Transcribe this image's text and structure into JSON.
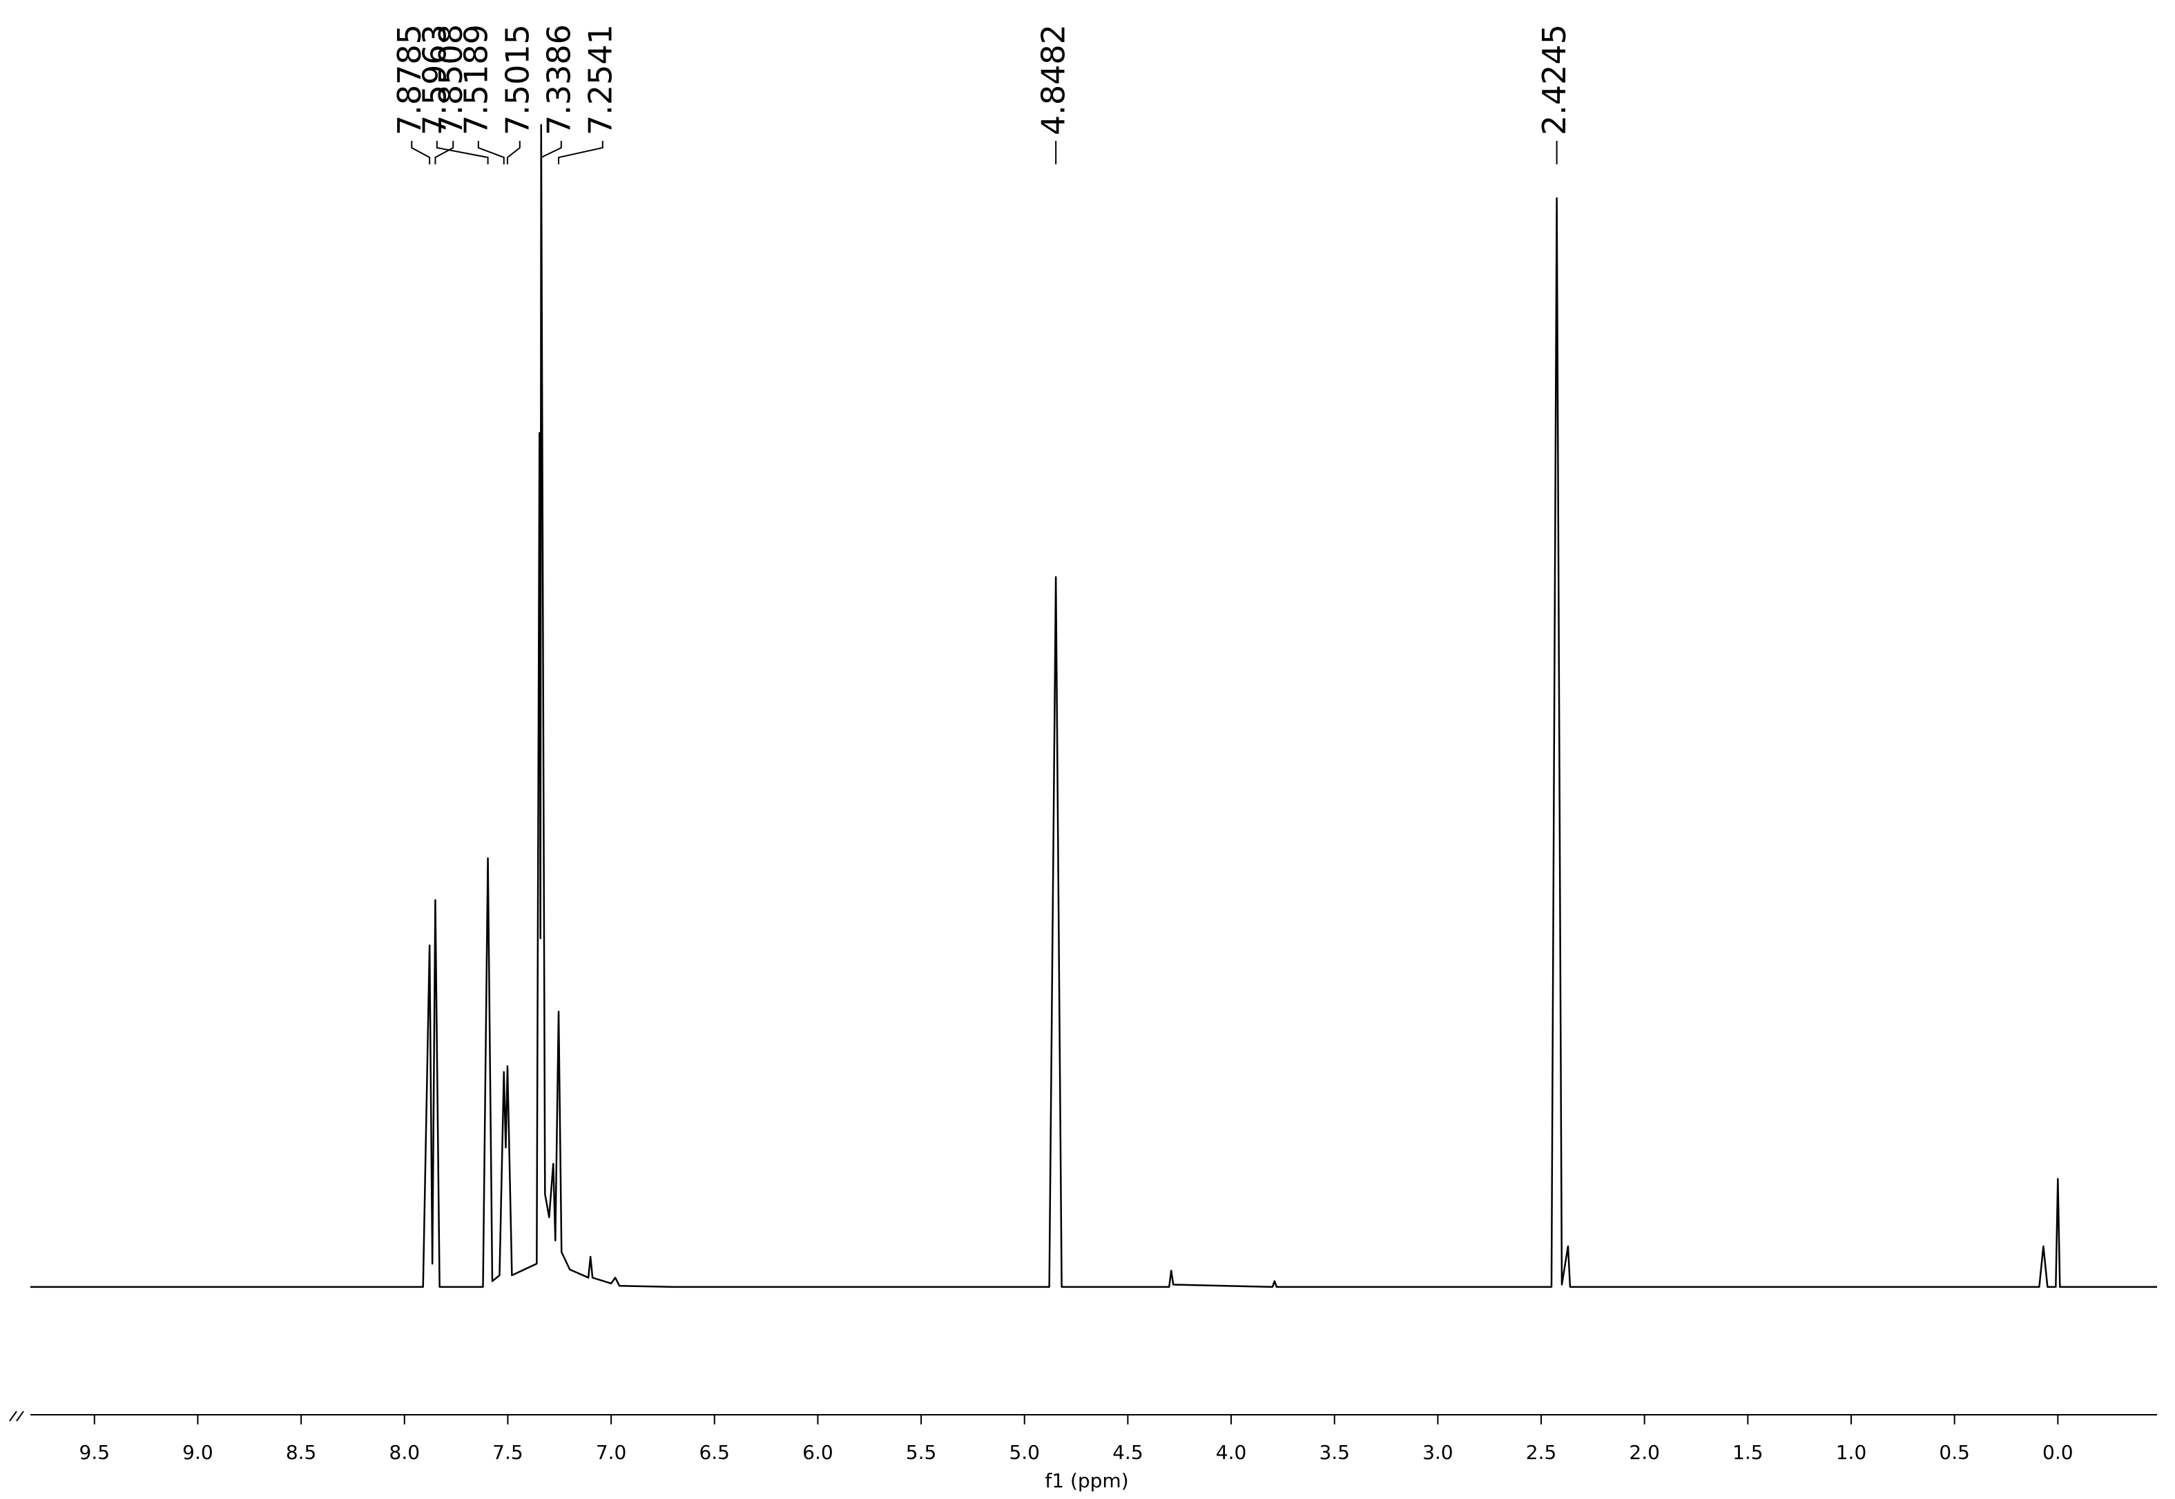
{
  "chart_data": {
    "type": "line",
    "x_label": "f1 (ppm)",
    "xlim": [
      9.81,
      -0.48
    ],
    "ylim": [
      -11,
      100
    ],
    "xticks": [
      9.5,
      {
        "value": 9,
        "label": "9.0"
      },
      8.5,
      {
        "value": 8,
        "label": "8.0"
      },
      7.5,
      {
        "value": 7,
        "label": "7.0"
      },
      6.5,
      {
        "value": 6,
        "label": "6.0"
      },
      5.5,
      {
        "value": 5,
        "label": "5.0"
      },
      4.5,
      {
        "value": 4,
        "label": "4.0"
      },
      3.5,
      {
        "value": 3,
        "label": "3.0"
      },
      2.5,
      {
        "value": 2,
        "label": "2.0"
      },
      1.5,
      {
        "value": 1,
        "label": "1.0"
      },
      0.5,
      {
        "value": 0,
        "label": "0.0"
      }
    ],
    "peaks": [
      7.8785,
      7.8508,
      7.5963,
      7.5189,
      7.5015,
      7.3386,
      7.2541,
      4.8482,
      2.4245
    ],
    "x": [
      9.81,
      7.91,
      7.8785,
      7.865,
      7.8508,
      7.83,
      7.62,
      7.5963,
      7.575,
      7.54,
      7.5189,
      7.51,
      7.5015,
      7.48,
      7.36,
      7.3466,
      7.342,
      7.3386,
      7.32,
      7.3,
      7.28,
      7.27,
      7.2541,
      7.24,
      7.2,
      7.11,
      7.1,
      7.09,
      7.0,
      6.98,
      6.96,
      6.7,
      4.88,
      4.8482,
      4.82,
      4.3,
      4.29,
      4.28,
      3.8,
      3.79,
      3.78,
      2.45,
      2.4245,
      2.4,
      2.37,
      2.36,
      0.09,
      0.07,
      0.05,
      0.01,
      0,
      -0.01,
      -0.48
    ],
    "series": [
      {
        "color": "#000000",
        "values": [
          0,
          0,
          29.4,
          2,
          33.3,
          0,
          0,
          36.9,
          0.5,
          1,
          18.5,
          12,
          19,
          1,
          2,
          73.5,
          30,
          100,
          8,
          6,
          10.6,
          4,
          23.7,
          3,
          1.5,
          0.8,
          2.6,
          0.8,
          0.3,
          0.8,
          0.1,
          0,
          0,
          61.1,
          0,
          0,
          1.4,
          0.2,
          0,
          0.5,
          0,
          0,
          93.7,
          0.2,
          3.5,
          0,
          0,
          3.5,
          0,
          0,
          9.3,
          0,
          0
        ]
      }
    ]
  }
}
